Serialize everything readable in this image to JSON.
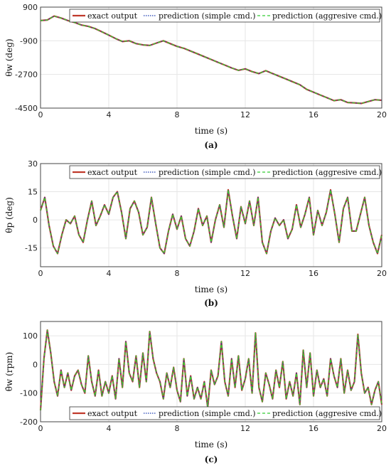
{
  "legend": {
    "entries": [
      "exact output",
      "prediction (simple cmd.)",
      "prediction (aggresive cmd.)"
    ],
    "placement": "top-right / bottom-right"
  },
  "colors": {
    "exact": "#c0392b",
    "simple": "#1f3fb3",
    "aggressive": "#33cc33",
    "grid": "#e6e6e6",
    "axis": "#444444"
  },
  "chart_data": [
    {
      "type": "line",
      "caption": "(a)",
      "ylabel": "θw (deg)",
      "xlabel": "time (s)",
      "xlim": [
        0,
        20
      ],
      "ylim": [
        -4500,
        900
      ],
      "xticks": [
        0,
        4,
        8,
        12,
        16,
        20
      ],
      "yticks": [
        900,
        -900,
        -2700,
        -4500
      ],
      "legend_position": "top-right",
      "x": [
        0,
        0.4,
        0.8,
        1.2,
        1.6,
        2,
        2.4,
        2.8,
        3.2,
        3.6,
        4,
        4.4,
        4.8,
        5.2,
        5.6,
        6,
        6.4,
        6.8,
        7.2,
        7.6,
        8,
        8.4,
        8.8,
        9.2,
        9.6,
        10,
        10.4,
        10.8,
        11.2,
        11.6,
        12,
        12.4,
        12.8,
        13.2,
        13.6,
        14,
        14.4,
        14.8,
        15.2,
        15.6,
        16,
        16.4,
        16.8,
        17.2,
        17.6,
        18,
        18.4,
        18.8,
        19.2,
        19.6,
        20
      ],
      "y": [
        180,
        210,
        420,
        320,
        180,
        80,
        -60,
        -130,
        -250,
        -420,
        -600,
        -780,
        -940,
        -900,
        -1050,
        -1120,
        -1150,
        -1020,
        -900,
        -1050,
        -1200,
        -1300,
        -1450,
        -1600,
        -1750,
        -1900,
        -2050,
        -2200,
        -2350,
        -2480,
        -2400,
        -2550,
        -2650,
        -2500,
        -2650,
        -2800,
        -2950,
        -3100,
        -3250,
        -3500,
        -3650,
        -3800,
        -3950,
        -4100,
        -4050,
        -4200,
        -4220,
        -4250,
        -4150,
        -4050,
        -4080
      ],
      "series": [
        {
          "name": "exact output",
          "style": "solid"
        },
        {
          "name": "prediction (simple cmd.)",
          "style": "dotted"
        },
        {
          "name": "prediction (aggresive cmd.)",
          "style": "dashed"
        }
      ]
    },
    {
      "type": "line",
      "caption": "(b)",
      "ylabel": "θp (deg)",
      "xlabel": "time (s)",
      "xlim": [
        0,
        20
      ],
      "ylim": [
        -25,
        30
      ],
      "xticks": [
        0,
        4,
        8,
        12,
        16,
        20
      ],
      "yticks": [
        30,
        15,
        0,
        -15
      ],
      "legend_position": "top-right",
      "x": [
        0,
        0.25,
        0.5,
        0.75,
        1,
        1.25,
        1.5,
        1.75,
        2,
        2.25,
        2.5,
        2.75,
        3,
        3.25,
        3.5,
        3.75,
        4,
        4.25,
        4.5,
        4.75,
        5,
        5.25,
        5.5,
        5.75,
        6,
        6.25,
        6.5,
        6.75,
        7,
        7.25,
        7.5,
        7.75,
        8,
        8.25,
        8.5,
        8.75,
        9,
        9.25,
        9.5,
        9.75,
        10,
        10.25,
        10.5,
        10.75,
        11,
        11.25,
        11.5,
        11.75,
        12,
        12.25,
        12.5,
        12.75,
        13,
        13.25,
        13.5,
        13.75,
        14,
        14.25,
        14.5,
        14.75,
        15,
        15.25,
        15.5,
        15.75,
        16,
        16.25,
        16.5,
        16.75,
        17,
        17.25,
        17.5,
        17.75,
        18,
        18.25,
        18.5,
        18.75,
        19,
        19.25,
        19.5,
        19.75,
        20
      ],
      "y": [
        5,
        12,
        -3,
        -14,
        -18,
        -8,
        0,
        -2,
        2,
        -8,
        -12,
        0,
        10,
        -3,
        2,
        8,
        3,
        12,
        15,
        4,
        -10,
        6,
        10,
        4,
        -8,
        -4,
        12,
        -2,
        -15,
        -18,
        -6,
        3,
        -5,
        2,
        -10,
        -14,
        -6,
        6,
        -3,
        2,
        -12,
        0,
        8,
        -4,
        16,
        2,
        -10,
        7,
        -2,
        10,
        -3,
        12,
        -12,
        -18,
        -6,
        1,
        -3,
        0,
        -10,
        -5,
        8,
        -4,
        3,
        12,
        -8,
        5,
        -3,
        4,
        16,
        3,
        -12,
        6,
        12,
        -6,
        -6,
        3,
        12,
        -3,
        -12,
        -18,
        -8
      ],
      "series": [
        {
          "name": "exact output",
          "style": "solid"
        },
        {
          "name": "prediction (simple cmd.)",
          "style": "dotted"
        },
        {
          "name": "prediction (aggresive cmd.)",
          "style": "dashed"
        }
      ]
    },
    {
      "type": "line",
      "caption": "(c)",
      "ylabel": "θ̇w (rpm)",
      "xlabel": "time (s)",
      "xlim": [
        0,
        20
      ],
      "ylim": [
        -200,
        150
      ],
      "xticks": [
        0,
        4,
        8,
        12,
        16,
        20
      ],
      "yticks": [
        100,
        0,
        -100,
        -200
      ],
      "legend_position": "bottom-right",
      "x": [
        0,
        0.2,
        0.4,
        0.6,
        0.8,
        1,
        1.2,
        1.4,
        1.6,
        1.8,
        2,
        2.2,
        2.4,
        2.6,
        2.8,
        3,
        3.2,
        3.4,
        3.6,
        3.8,
        4,
        4.2,
        4.4,
        4.6,
        4.8,
        5,
        5.2,
        5.4,
        5.6,
        5.8,
        6,
        6.2,
        6.4,
        6.6,
        6.8,
        7,
        7.2,
        7.4,
        7.6,
        7.8,
        8,
        8.2,
        8.4,
        8.6,
        8.8,
        9,
        9.2,
        9.4,
        9.6,
        9.8,
        10,
        10.2,
        10.4,
        10.6,
        10.8,
        11,
        11.2,
        11.4,
        11.6,
        11.8,
        12,
        12.2,
        12.4,
        12.6,
        12.8,
        13,
        13.2,
        13.4,
        13.6,
        13.8,
        14,
        14.2,
        14.4,
        14.6,
        14.8,
        15,
        15.2,
        15.4,
        15.6,
        15.8,
        16,
        16.2,
        16.4,
        16.6,
        16.8,
        17,
        17.2,
        17.4,
        17.6,
        17.8,
        18,
        18.2,
        18.4,
        18.6,
        18.8,
        19,
        19.2,
        19.4,
        19.6,
        19.8,
        20
      ],
      "y": [
        -160,
        20,
        120,
        40,
        -60,
        -110,
        -20,
        -80,
        -30,
        -90,
        -40,
        -20,
        -70,
        -100,
        30,
        -60,
        -110,
        -20,
        -110,
        -60,
        -100,
        -40,
        -120,
        20,
        -80,
        80,
        -30,
        -60,
        30,
        -80,
        40,
        -60,
        115,
        20,
        -30,
        -60,
        -120,
        -30,
        -80,
        -10,
        -90,
        -130,
        20,
        -110,
        -40,
        -120,
        -80,
        -120,
        -60,
        -150,
        -20,
        -70,
        -40,
        80,
        -60,
        -110,
        20,
        -80,
        30,
        -90,
        -50,
        20,
        -100,
        110,
        -80,
        -130,
        -30,
        -70,
        -120,
        -20,
        -80,
        10,
        -120,
        -60,
        -110,
        -30,
        -140,
        50,
        -80,
        40,
        -110,
        -20,
        -80,
        -50,
        -110,
        20,
        -40,
        -80,
        20,
        -100,
        -20,
        -90,
        -60,
        105,
        -30,
        -100,
        -80,
        -140,
        -90,
        -60,
        -140
      ],
      "series": [
        {
          "name": "exact output",
          "style": "solid"
        },
        {
          "name": "prediction (simple cmd.)",
          "style": "dotted"
        },
        {
          "name": "prediction (aggresive cmd.)",
          "style": "dashed"
        }
      ]
    }
  ]
}
